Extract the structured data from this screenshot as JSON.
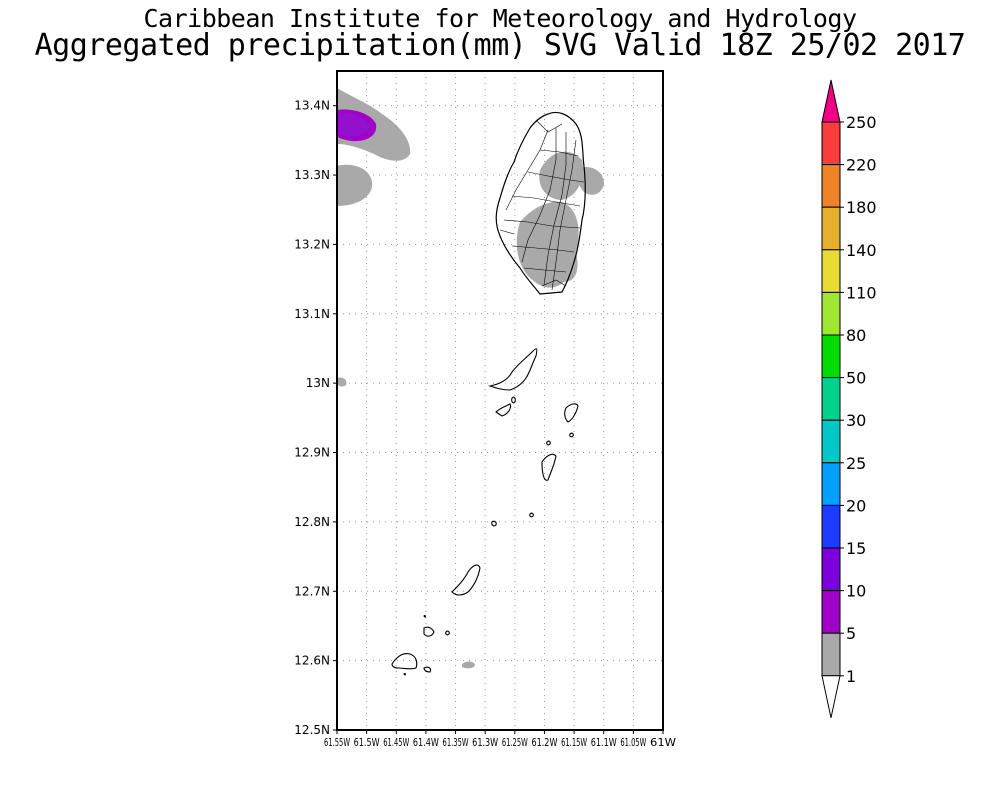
{
  "header": {
    "title": "Caribbean Institute for Meteorology and Hydrology",
    "subtitle": "Aggregated precipitation(mm) SVG Valid 18Z 25/02 2017"
  },
  "map": {
    "lon_range": [
      -61.55,
      -61.0
    ],
    "lat_range": [
      12.5,
      13.45
    ],
    "lat_ticks": [
      {
        "value": 13.4,
        "label": "13.4N"
      },
      {
        "value": 13.3,
        "label": "13.3N"
      },
      {
        "value": 13.2,
        "label": "13.2N"
      },
      {
        "value": 13.1,
        "label": "13.1N"
      },
      {
        "value": 13.0,
        "label": "13N"
      },
      {
        "value": 12.9,
        "label": "12.9N"
      },
      {
        "value": 12.8,
        "label": "12.8N"
      },
      {
        "value": 12.7,
        "label": "12.7N"
      },
      {
        "value": 12.6,
        "label": "12.6N"
      },
      {
        "value": 12.5,
        "label": "12.5N"
      }
    ],
    "lon_ticks": [
      {
        "value": -61.55,
        "label": "61.55W"
      },
      {
        "value": -61.5,
        "label": "61.5W"
      },
      {
        "value": -61.45,
        "label": "61.45W"
      },
      {
        "value": -61.4,
        "label": "61.4W"
      },
      {
        "value": -61.35,
        "label": "61.35W"
      },
      {
        "value": -61.3,
        "label": "61.3W"
      },
      {
        "value": -61.25,
        "label": "61.25W"
      },
      {
        "value": -61.2,
        "label": "61.2W"
      },
      {
        "value": -61.15,
        "label": "61.15W"
      },
      {
        "value": -61.1,
        "label": "61.1W"
      },
      {
        "value": -61.05,
        "label": "61.05W"
      },
      {
        "value": -61.0,
        "label": "61W"
      }
    ],
    "grid": true,
    "colors": {
      "rain_1_5": "#a9a9a9",
      "rain_5_10": "#a000c8",
      "rain_10_15": "#7d00dd"
    }
  },
  "legend": {
    "placement": "right",
    "levels": [
      {
        "label": "250",
        "color": "#f00082"
      },
      {
        "label": "220",
        "color": "#fa3c3c"
      },
      {
        "label": "180",
        "color": "#f08228"
      },
      {
        "label": "140",
        "color": "#e6af2d"
      },
      {
        "label": "110",
        "color": "#e6dc32"
      },
      {
        "label": "80",
        "color": "#a0e632"
      },
      {
        "label": "50",
        "color": "#00dc00"
      },
      {
        "label": "30",
        "color": "#00d28c"
      },
      {
        "label": "25",
        "color": "#00c8c8"
      },
      {
        "label": "20",
        "color": "#00a0ff"
      },
      {
        "label": "15",
        "color": "#1e3cff"
      },
      {
        "label": "10",
        "color": "#7d00dd"
      },
      {
        "label": "5",
        "color": "#a000c8"
      },
      {
        "label": "1",
        "color": "#a9a9a9"
      }
    ],
    "below_min_color": "#ffffff"
  }
}
